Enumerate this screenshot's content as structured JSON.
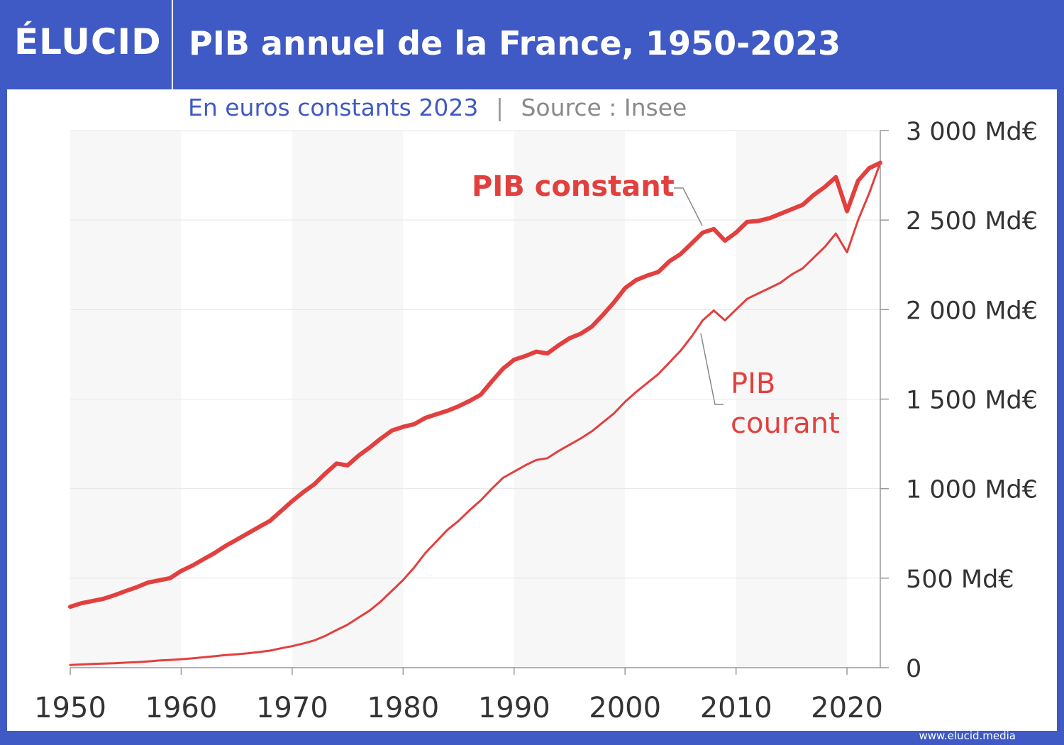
{
  "brand": "ÉLUCID",
  "footer": "www.elucid.media",
  "chart_data": {
    "type": "line",
    "title": "PIB annuel de la France, 1950-2023",
    "subtitle": "En euros constants 2023",
    "separator": "|",
    "source": "Source : Insee",
    "x": [
      1950,
      1951,
      1952,
      1953,
      1954,
      1955,
      1956,
      1957,
      1958,
      1959,
      1960,
      1961,
      1962,
      1963,
      1964,
      1965,
      1966,
      1967,
      1968,
      1969,
      1970,
      1971,
      1972,
      1973,
      1974,
      1975,
      1976,
      1977,
      1978,
      1979,
      1980,
      1981,
      1982,
      1983,
      1984,
      1985,
      1986,
      1987,
      1988,
      1989,
      1990,
      1991,
      1992,
      1993,
      1994,
      1995,
      1996,
      1997,
      1998,
      1999,
      2000,
      2001,
      2002,
      2003,
      2004,
      2005,
      2006,
      2007,
      2008,
      2009,
      2010,
      2011,
      2012,
      2013,
      2014,
      2015,
      2016,
      2017,
      2018,
      2019,
      2020,
      2021,
      2022,
      2023
    ],
    "series": [
      {
        "name": "PIB constant",
        "color": "#e2403f",
        "width": 6,
        "values": [
          340,
          360,
          372,
          385,
          405,
          428,
          450,
          475,
          488,
          500,
          540,
          570,
          605,
          640,
          680,
          715,
          750,
          785,
          820,
          875,
          930,
          980,
          1025,
          1085,
          1140,
          1130,
          1185,
          1230,
          1280,
          1325,
          1345,
          1360,
          1395,
          1415,
          1435,
          1460,
          1490,
          1525,
          1600,
          1670,
          1720,
          1740,
          1765,
          1755,
          1800,
          1840,
          1865,
          1905,
          1970,
          2040,
          2120,
          2165,
          2190,
          2210,
          2270,
          2310,
          2370,
          2430,
          2450,
          2385,
          2430,
          2490,
          2495,
          2510,
          2535,
          2560,
          2585,
          2640,
          2685,
          2740,
          2550,
          2720,
          2790,
          2820
        ]
      },
      {
        "name": "PIB courant",
        "color": "#e2403f",
        "width": 3,
        "values": [
          15,
          18,
          21,
          23,
          25,
          28,
          31,
          35,
          40,
          43,
          47,
          52,
          58,
          64,
          70,
          75,
          80,
          87,
          95,
          108,
          120,
          135,
          152,
          178,
          210,
          240,
          280,
          320,
          370,
          430,
          490,
          560,
          640,
          705,
          770,
          820,
          880,
          935,
          1000,
          1060,
          1095,
          1130,
          1160,
          1170,
          1210,
          1245,
          1280,
          1320,
          1370,
          1420,
          1485,
          1540,
          1590,
          1640,
          1705,
          1770,
          1850,
          1940,
          1995,
          1940,
          2000,
          2060,
          2090,
          2120,
          2150,
          2195,
          2230,
          2290,
          2350,
          2425,
          2320,
          2500,
          2650,
          2820
        ]
      }
    ],
    "xlim": [
      1950,
      2023
    ],
    "xticks": [
      1950,
      1960,
      1970,
      1980,
      1990,
      2000,
      2010,
      2020
    ],
    "ylim": [
      0,
      3000
    ],
    "yticks": [
      0,
      {
        "value": 500,
        "label": "500 Md€"
      },
      {
        "value": 1000,
        "label": "1 000 Md€"
      },
      {
        "value": 1500,
        "label": "1 500 Md€"
      },
      {
        "value": 2000,
        "label": "2 000 Md€"
      },
      {
        "value": 2500,
        "label": "2 500 Md€"
      },
      {
        "value": 3000,
        "label": "3 000 Md€"
      }
    ],
    "grid": true
  }
}
